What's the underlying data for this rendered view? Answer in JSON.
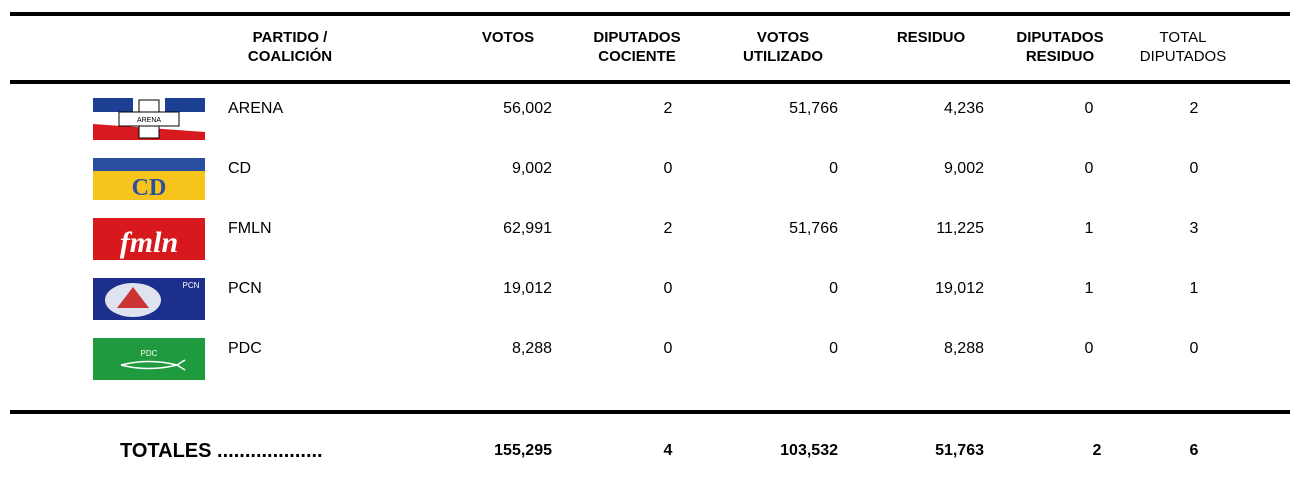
{
  "header": {
    "columns": [
      [
        "PARTIDO /",
        "COALICIÓN"
      ],
      [
        "VOTOS"
      ],
      [
        "DIPUTADOS",
        "COCIENTE"
      ],
      [
        "VOTOS",
        "UTILIZADO"
      ],
      [
        "RESIDUO"
      ],
      [
        "DIPUTADOS",
        "RESIDUO"
      ],
      [
        "TOTAL",
        "DIPUTADOS"
      ]
    ]
  },
  "rows": [
    {
      "logo": "ARENA",
      "party": "ARENA",
      "cells": [
        "56,002",
        "2",
        "51,766",
        "4,236",
        "0",
        "2"
      ]
    },
    {
      "logo": "CD",
      "party": "CD",
      "cells": [
        "9,002",
        "0",
        "0",
        "9,002",
        "0",
        "0"
      ]
    },
    {
      "logo": "fmln",
      "party": "FMLN",
      "cells": [
        "62,991",
        "2",
        "51,766",
        "11,225",
        "1",
        "3"
      ]
    },
    {
      "logo": "PCN",
      "party": "PCN",
      "cells": [
        "19,012",
        "0",
        "0",
        "19,012",
        "1",
        "1"
      ]
    },
    {
      "logo": "PDC",
      "party": "PDC",
      "cells": [
        "8,288",
        "0",
        "0",
        "8,288",
        "0",
        "0"
      ]
    }
  ],
  "totals": {
    "label": "TOTALES ...................",
    "cells": [
      "155,295",
      "4",
      "103,532",
      "51,763",
      "2",
      "6"
    ]
  }
}
